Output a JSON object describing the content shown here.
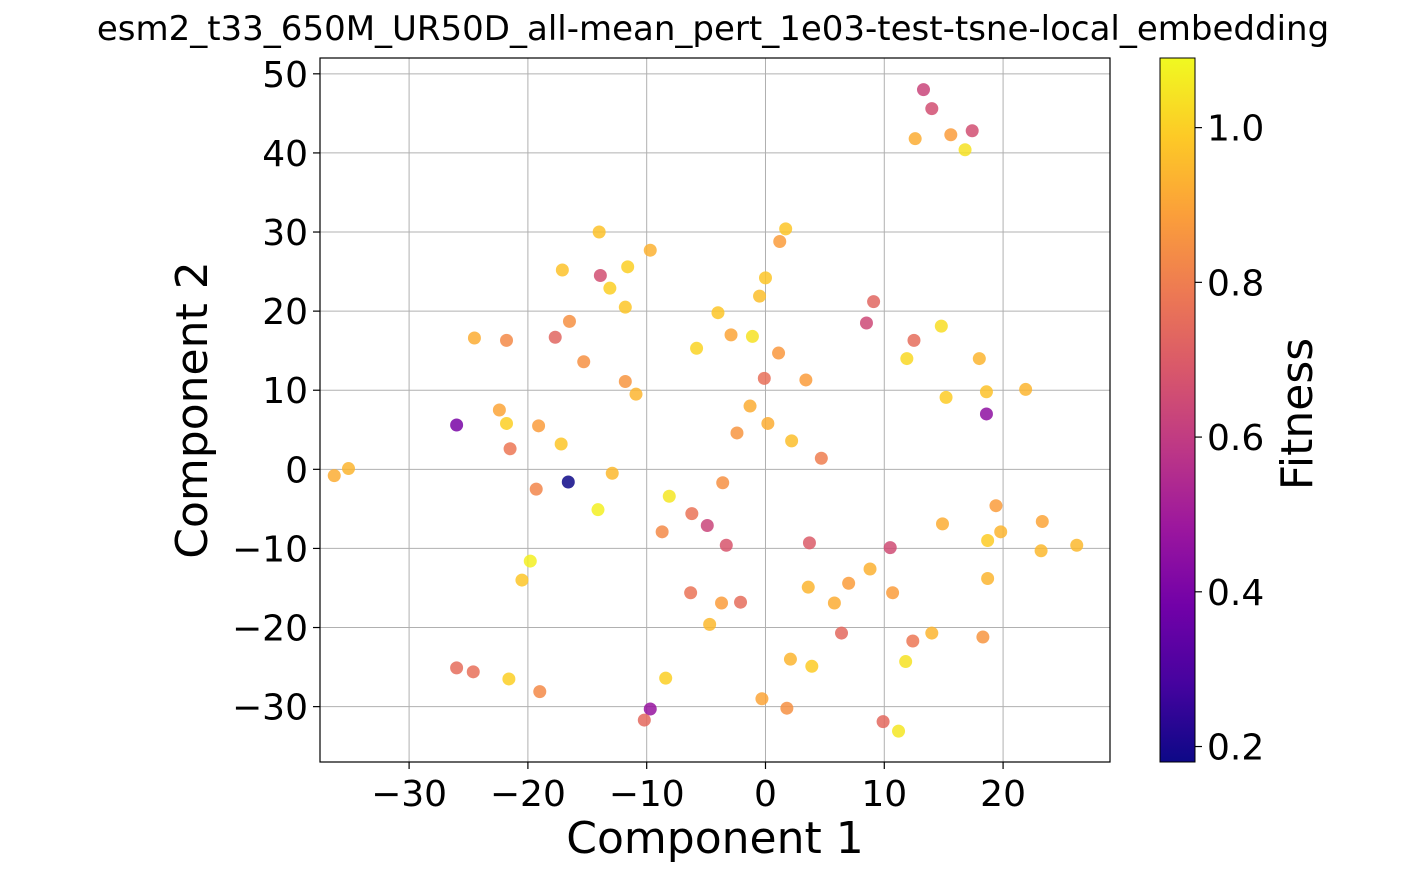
{
  "chart_data": {
    "type": "scatter",
    "title": "esm2_t33_650M_UR50D_all-mean_pert_1e03-test-tsne-local_embedding",
    "xlabel": "Component 1",
    "ylabel": "Component 2",
    "xlim": [
      -37.5,
      29
    ],
    "ylim": [
      -37,
      52
    ],
    "xticks": [
      -30,
      -20,
      -10,
      0,
      10,
      20
    ],
    "yticks": [
      -30,
      -20,
      -10,
      0,
      10,
      20,
      30,
      40,
      50
    ],
    "grid": true,
    "colormap": "plasma",
    "colorbar": {
      "label": "Fitness",
      "range": [
        0.18,
        1.09
      ],
      "ticks": [
        0.2,
        0.4,
        0.6,
        0.8,
        1.0
      ],
      "tick_labels": [
        "0.2",
        "0.4",
        "0.6",
        "0.8",
        "1.0"
      ]
    },
    "points": [
      {
        "x": 13.3,
        "y": 48.0,
        "c": 0.63
      },
      {
        "x": 14.0,
        "y": 45.6,
        "c": 0.66
      },
      {
        "x": 17.4,
        "y": 42.8,
        "c": 0.66
      },
      {
        "x": 12.6,
        "y": 41.8,
        "c": 0.92
      },
      {
        "x": 15.6,
        "y": 42.3,
        "c": 0.88
      },
      {
        "x": 16.8,
        "y": 40.4,
        "c": 1.04
      },
      {
        "x": -14.0,
        "y": 30.0,
        "c": 0.97
      },
      {
        "x": 1.7,
        "y": 30.4,
        "c": 0.98
      },
      {
        "x": 1.2,
        "y": 28.8,
        "c": 0.88
      },
      {
        "x": -9.7,
        "y": 27.7,
        "c": 0.93
      },
      {
        "x": -17.1,
        "y": 25.2,
        "c": 0.97
      },
      {
        "x": -11.6,
        "y": 25.6,
        "c": 1.0
      },
      {
        "x": -13.9,
        "y": 24.5,
        "c": 0.66
      },
      {
        "x": 0.0,
        "y": 24.2,
        "c": 0.98
      },
      {
        "x": -13.1,
        "y": 22.9,
        "c": 1.0
      },
      {
        "x": -11.8,
        "y": 20.5,
        "c": 0.98
      },
      {
        "x": -0.5,
        "y": 21.9,
        "c": 0.96
      },
      {
        "x": 9.1,
        "y": 21.2,
        "c": 0.73
      },
      {
        "x": -4.0,
        "y": 19.8,
        "c": 0.98
      },
      {
        "x": -16.5,
        "y": 18.7,
        "c": 0.85
      },
      {
        "x": 8.5,
        "y": 18.5,
        "c": 0.64
      },
      {
        "x": 14.8,
        "y": 18.1,
        "c": 1.03
      },
      {
        "x": -24.5,
        "y": 16.6,
        "c": 0.92
      },
      {
        "x": -21.8,
        "y": 16.3,
        "c": 0.83
      },
      {
        "x": -17.7,
        "y": 16.7,
        "c": 0.73
      },
      {
        "x": -2.9,
        "y": 17.0,
        "c": 0.9
      },
      {
        "x": -1.1,
        "y": 16.8,
        "c": 1.04
      },
      {
        "x": 12.5,
        "y": 16.3,
        "c": 0.75
      },
      {
        "x": -5.8,
        "y": 15.3,
        "c": 1.01
      },
      {
        "x": 1.1,
        "y": 14.7,
        "c": 0.87
      },
      {
        "x": -15.3,
        "y": 13.6,
        "c": 0.85
      },
      {
        "x": 11.9,
        "y": 14.0,
        "c": 1.02
      },
      {
        "x": 18.0,
        "y": 14.0,
        "c": 0.94
      },
      {
        "x": -0.1,
        "y": 11.5,
        "c": 0.76
      },
      {
        "x": 3.4,
        "y": 11.3,
        "c": 0.88
      },
      {
        "x": -11.8,
        "y": 11.1,
        "c": 0.86
      },
      {
        "x": 21.9,
        "y": 10.1,
        "c": 0.94
      },
      {
        "x": 18.6,
        "y": 9.8,
        "c": 0.97
      },
      {
        "x": -10.9,
        "y": 9.5,
        "c": 0.94
      },
      {
        "x": 15.2,
        "y": 9.1,
        "c": 0.99
      },
      {
        "x": -22.4,
        "y": 7.5,
        "c": 0.9
      },
      {
        "x": -1.3,
        "y": 8.0,
        "c": 0.92
      },
      {
        "x": 18.6,
        "y": 7.0,
        "c": 0.45
      },
      {
        "x": -26.0,
        "y": 5.6,
        "c": 0.4
      },
      {
        "x": -21.8,
        "y": 5.8,
        "c": 1.0
      },
      {
        "x": -19.1,
        "y": 5.5,
        "c": 0.88
      },
      {
        "x": 0.2,
        "y": 5.8,
        "c": 0.92
      },
      {
        "x": -2.4,
        "y": 4.6,
        "c": 0.86
      },
      {
        "x": -17.2,
        "y": 3.2,
        "c": 0.98
      },
      {
        "x": 2.2,
        "y": 3.6,
        "c": 0.96
      },
      {
        "x": -21.5,
        "y": 2.6,
        "c": 0.78
      },
      {
        "x": 4.7,
        "y": 1.4,
        "c": 0.8
      },
      {
        "x": -35.1,
        "y": 0.1,
        "c": 0.94
      },
      {
        "x": -36.3,
        "y": -0.8,
        "c": 0.92
      },
      {
        "x": -12.9,
        "y": -0.5,
        "c": 0.95
      },
      {
        "x": -16.6,
        "y": -1.6,
        "c": 0.18
      },
      {
        "x": -3.6,
        "y": -1.7,
        "c": 0.85
      },
      {
        "x": -19.3,
        "y": -2.5,
        "c": 0.82
      },
      {
        "x": -8.1,
        "y": -3.4,
        "c": 1.05
      },
      {
        "x": -14.1,
        "y": -5.1,
        "c": 1.07
      },
      {
        "x": 19.4,
        "y": -4.6,
        "c": 0.88
      },
      {
        "x": -6.2,
        "y": -5.6,
        "c": 0.77
      },
      {
        "x": -4.9,
        "y": -7.1,
        "c": 0.63
      },
      {
        "x": 14.9,
        "y": -6.9,
        "c": 0.92
      },
      {
        "x": 23.3,
        "y": -6.6,
        "c": 0.9
      },
      {
        "x": -8.7,
        "y": -7.9,
        "c": 0.83
      },
      {
        "x": 19.8,
        "y": -7.9,
        "c": 0.94
      },
      {
        "x": -3.3,
        "y": -9.6,
        "c": 0.68
      },
      {
        "x": 3.7,
        "y": -9.3,
        "c": 0.7
      },
      {
        "x": 10.5,
        "y": -9.9,
        "c": 0.65
      },
      {
        "x": 18.7,
        "y": -9.0,
        "c": 0.99
      },
      {
        "x": 23.2,
        "y": -10.3,
        "c": 0.95
      },
      {
        "x": 26.2,
        "y": -9.6,
        "c": 0.95
      },
      {
        "x": -19.8,
        "y": -11.6,
        "c": 1.07
      },
      {
        "x": 8.8,
        "y": -12.6,
        "c": 0.93
      },
      {
        "x": -20.5,
        "y": -14.0,
        "c": 0.98
      },
      {
        "x": 18.7,
        "y": -13.8,
        "c": 0.94
      },
      {
        "x": 3.6,
        "y": -14.9,
        "c": 0.94
      },
      {
        "x": 7.0,
        "y": -14.4,
        "c": 0.88
      },
      {
        "x": -6.3,
        "y": -15.6,
        "c": 0.77
      },
      {
        "x": 10.7,
        "y": -15.6,
        "c": 0.88
      },
      {
        "x": -3.7,
        "y": -16.9,
        "c": 0.88
      },
      {
        "x": -2.1,
        "y": -16.8,
        "c": 0.75
      },
      {
        "x": 5.8,
        "y": -16.9,
        "c": 0.92
      },
      {
        "x": -4.7,
        "y": -19.6,
        "c": 0.95
      },
      {
        "x": 6.4,
        "y": -20.7,
        "c": 0.74
      },
      {
        "x": 14.0,
        "y": -20.7,
        "c": 0.94
      },
      {
        "x": 12.4,
        "y": -21.7,
        "c": 0.78
      },
      {
        "x": 18.3,
        "y": -21.2,
        "c": 0.86
      },
      {
        "x": 2.1,
        "y": -24.0,
        "c": 0.94
      },
      {
        "x": 3.9,
        "y": -24.9,
        "c": 0.99
      },
      {
        "x": 11.8,
        "y": -24.3,
        "c": 1.04
      },
      {
        "x": -26.0,
        "y": -25.1,
        "c": 0.75
      },
      {
        "x": -24.6,
        "y": -25.6,
        "c": 0.76
      },
      {
        "x": -21.6,
        "y": -26.5,
        "c": 1.0
      },
      {
        "x": -8.4,
        "y": -26.4,
        "c": 1.0
      },
      {
        "x": -19.0,
        "y": -28.1,
        "c": 0.83
      },
      {
        "x": -0.3,
        "y": -29.0,
        "c": 0.9
      },
      {
        "x": 1.8,
        "y": -30.2,
        "c": 0.85
      },
      {
        "x": -9.7,
        "y": -30.3,
        "c": 0.47
      },
      {
        "x": -10.2,
        "y": -31.7,
        "c": 0.74
      },
      {
        "x": 9.9,
        "y": -31.9,
        "c": 0.74
      },
      {
        "x": 11.2,
        "y": -33.1,
        "c": 1.05
      }
    ]
  }
}
